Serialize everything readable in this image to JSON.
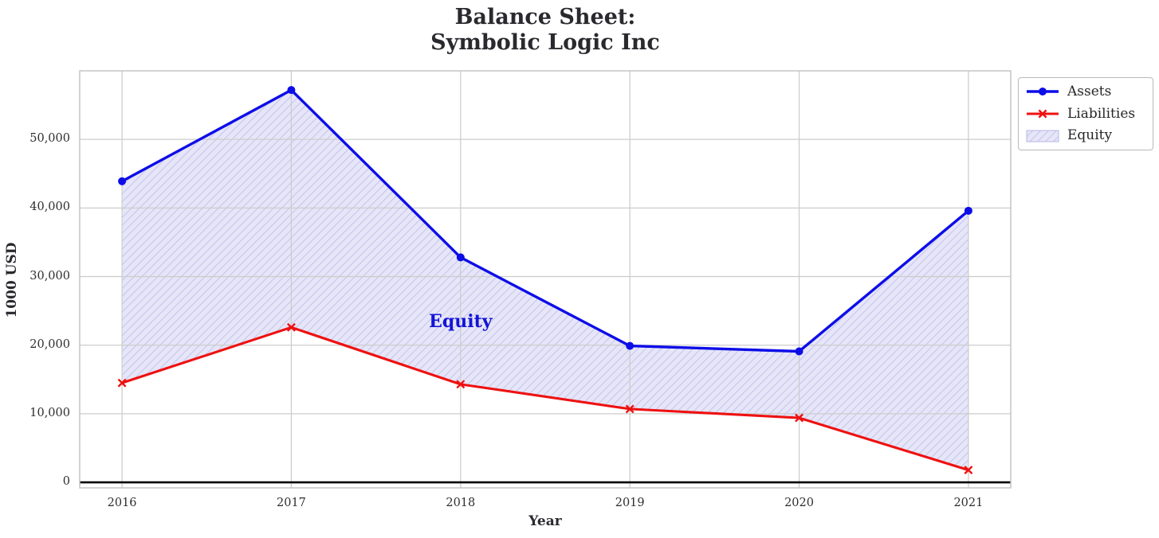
{
  "chart_data": {
    "type": "area",
    "title": "Balance Sheet:\nSymbolic Logic Inc",
    "xlabel": "Year",
    "ylabel": "1000 USD",
    "x": [
      2016,
      2017,
      2018,
      2019,
      2020,
      2021
    ],
    "x_tick_labels": [
      "2016",
      "2017",
      "2018",
      "2019",
      "2020",
      "2021"
    ],
    "y_ticks": [
      0,
      10000,
      20000,
      30000,
      40000,
      50000
    ],
    "y_tick_labels": [
      "0",
      "10,000",
      "20,000",
      "30,000",
      "40,000",
      "50,000"
    ],
    "xlim": [
      2015.75,
      2021.25
    ],
    "ylim": [
      -800,
      60000
    ],
    "grid": true,
    "grid_color": "#cccccc",
    "spine_color": "#c0c0c0",
    "zero_line_color": "#000000",
    "series": [
      {
        "name": "Assets",
        "type": "line",
        "marker": "circle",
        "color": "#0d0de8",
        "values": [
          43900,
          57200,
          32800,
          19900,
          19100,
          39600
        ]
      },
      {
        "name": "Liabilities",
        "type": "line",
        "marker": "x",
        "color": "#ee1111",
        "values": [
          14500,
          22600,
          14300,
          10700,
          9400,
          1800
        ]
      },
      {
        "name": "Equity",
        "type": "fill-between",
        "upper": "Assets",
        "lower": "Liabilities",
        "fill_color": "#e6e6f8",
        "hatch": "//",
        "hatch_color": "#c8c8ef",
        "edge_color": "#b6b6e4",
        "values_note": "equity = assets - liabilities"
      }
    ],
    "annotation": {
      "text": "Equity",
      "x": 2018,
      "y": 23500,
      "color": "#1414d6"
    },
    "legend": {
      "position": "upper-right-outside",
      "entries": [
        "Assets",
        "Liabilities",
        "Equity"
      ]
    }
  }
}
